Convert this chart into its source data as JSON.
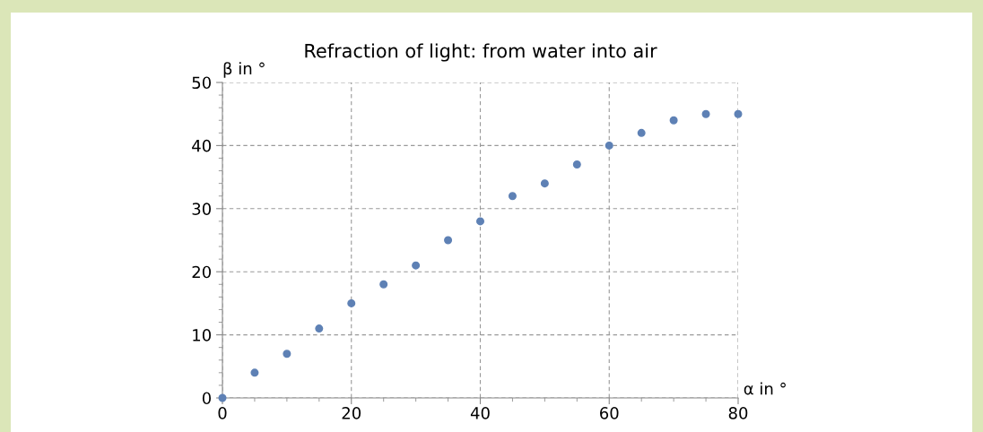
{
  "chart_data": {
    "type": "scatter",
    "title": "Refraction of light: from water into air",
    "xlabel": "α in °",
    "ylabel": "β in °",
    "x": [
      0,
      5,
      10,
      15,
      20,
      25,
      30,
      35,
      40,
      45,
      50,
      55,
      60,
      65,
      70,
      75,
      80
    ],
    "series": [
      {
        "color": "#5e81b5",
        "values": [
          0,
          4,
          7,
          11,
          15,
          18,
          21,
          25,
          28,
          32,
          34,
          37,
          40,
          42,
          44,
          45,
          45
        ]
      }
    ],
    "xlim": [
      0,
      80
    ],
    "ylim": [
      0,
      50
    ],
    "xticks": [
      0,
      20,
      40,
      60,
      80
    ],
    "yticks": [
      0,
      10,
      20,
      30,
      40,
      50
    ],
    "grid": true,
    "marker": "circle"
  }
}
